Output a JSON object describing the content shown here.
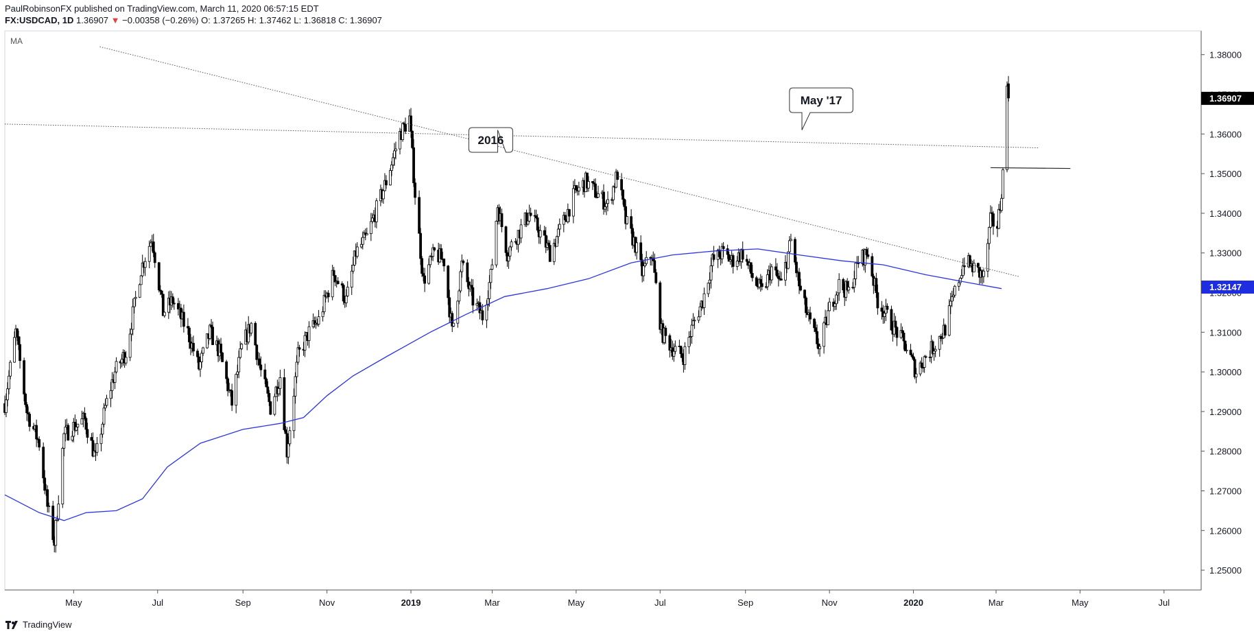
{
  "header": {
    "publisher_line": "PaulRobinsonFX published on TradingView.com, March 11, 2020 06:57:15 EDT",
    "symbol": "FX:USDCAD, 1D",
    "last": "1.36907",
    "change_arrow": "▼",
    "change": "−0.00358 (−0.26%)",
    "ohlc": "O: 1.37265 H: 1.37462 L: 1.36818 C: 1.36907"
  },
  "indicator_label": "MA",
  "footer": {
    "brand": "TradingView",
    "icon": "tradingview-logo-icon"
  },
  "chart_data": {
    "type": "candlestick",
    "symbol": "FX:USDCAD",
    "interval": "1D",
    "ylim": [
      1.245,
      1.386
    ],
    "yticks": [
      "1.38000",
      "1.37000",
      "1.36000",
      "1.35000",
      "1.34000",
      "1.33000",
      "1.32000",
      "1.31000",
      "1.30000",
      "1.29000",
      "1.28000",
      "1.27000",
      "1.26000",
      "1.25000"
    ],
    "xlim": [
      "2018-03-12",
      "2020-07-28"
    ],
    "xticks": [
      {
        "date": "2018-05-01",
        "label": "May",
        "bold": false
      },
      {
        "date": "2018-07-01",
        "label": "Jul",
        "bold": false
      },
      {
        "date": "2018-09-01",
        "label": "Sep",
        "bold": false
      },
      {
        "date": "2018-11-01",
        "label": "Nov",
        "bold": false
      },
      {
        "date": "2019-01-01",
        "label": "2019",
        "bold": true
      },
      {
        "date": "2019-03-01",
        "label": "Mar",
        "bold": false
      },
      {
        "date": "2019-05-01",
        "label": "May",
        "bold": false
      },
      {
        "date": "2019-07-01",
        "label": "Jul",
        "bold": false
      },
      {
        "date": "2019-09-01",
        "label": "Sep",
        "bold": false
      },
      {
        "date": "2019-11-01",
        "label": "Nov",
        "bold": false
      },
      {
        "date": "2020-01-01",
        "label": "2020",
        "bold": true
      },
      {
        "date": "2020-03-01",
        "label": "Mar",
        "bold": false
      },
      {
        "date": "2020-05-01",
        "label": "May",
        "bold": false
      },
      {
        "date": "2020-07-01",
        "label": "Jul",
        "bold": false
      }
    ],
    "close_path": [
      [
        "2018-03-12",
        1.292
      ],
      [
        "2018-03-20",
        1.31
      ],
      [
        "2018-03-28",
        1.29
      ],
      [
        "2018-04-06",
        1.282
      ],
      [
        "2018-04-12",
        1.266
      ],
      [
        "2018-04-17",
        1.257
      ],
      [
        "2018-04-24",
        1.284
      ],
      [
        "2018-04-30",
        1.286
      ],
      [
        "2018-05-09",
        1.288
      ],
      [
        "2018-05-17",
        1.278
      ],
      [
        "2018-05-24",
        1.291
      ],
      [
        "2018-05-31",
        1.3
      ],
      [
        "2018-06-08",
        1.305
      ],
      [
        "2018-06-19",
        1.326
      ],
      [
        "2018-06-27",
        1.334
      ],
      [
        "2018-07-05",
        1.315
      ],
      [
        "2018-07-12",
        1.318
      ],
      [
        "2018-07-23",
        1.31
      ],
      [
        "2018-07-31",
        1.301
      ],
      [
        "2018-08-08",
        1.31
      ],
      [
        "2018-08-15",
        1.305
      ],
      [
        "2018-08-24",
        1.292
      ],
      [
        "2018-08-31",
        1.306
      ],
      [
        "2018-09-07",
        1.312
      ],
      [
        "2018-09-14",
        1.3
      ],
      [
        "2018-09-21",
        1.291
      ],
      [
        "2018-09-28",
        1.299
      ],
      [
        "2018-10-03",
        1.28
      ],
      [
        "2018-10-11",
        1.304
      ],
      [
        "2018-10-19",
        1.31
      ],
      [
        "2018-10-26",
        1.313
      ],
      [
        "2018-11-06",
        1.325
      ],
      [
        "2018-11-15",
        1.318
      ],
      [
        "2018-11-22",
        1.33
      ],
      [
        "2018-11-30",
        1.334
      ],
      [
        "2018-12-06",
        1.34
      ],
      [
        "2018-12-14",
        1.348
      ],
      [
        "2018-12-24",
        1.36
      ],
      [
        "2018-12-31",
        1.364
      ],
      [
        "2019-01-04",
        1.345
      ],
      [
        "2019-01-10",
        1.323
      ],
      [
        "2019-01-18",
        1.33
      ],
      [
        "2019-01-25",
        1.328
      ],
      [
        "2019-01-31",
        1.31
      ],
      [
        "2019-02-07",
        1.327
      ],
      [
        "2019-02-15",
        1.318
      ],
      [
        "2019-02-22",
        1.314
      ],
      [
        "2019-02-28",
        1.324
      ],
      [
        "2019-03-05",
        1.342
      ],
      [
        "2019-03-12",
        1.33
      ],
      [
        "2019-03-20",
        1.335
      ],
      [
        "2019-03-28",
        1.34
      ],
      [
        "2019-04-05",
        1.335
      ],
      [
        "2019-04-12",
        1.33
      ],
      [
        "2019-04-22",
        1.338
      ],
      [
        "2019-04-30",
        1.345
      ],
      [
        "2019-05-08",
        1.348
      ],
      [
        "2019-05-16",
        1.345
      ],
      [
        "2019-05-24",
        1.342
      ],
      [
        "2019-05-31",
        1.35
      ],
      [
        "2019-06-06",
        1.338
      ],
      [
        "2019-06-13",
        1.332
      ],
      [
        "2019-06-18",
        1.325
      ],
      [
        "2019-06-25",
        1.33
      ],
      [
        "2019-07-02",
        1.31
      ],
      [
        "2019-07-10",
        1.306
      ],
      [
        "2019-07-18",
        1.304
      ],
      [
        "2019-07-25",
        1.312
      ],
      [
        "2019-08-01",
        1.318
      ],
      [
        "2019-08-08",
        1.328
      ],
      [
        "2019-08-15",
        1.33
      ],
      [
        "2019-08-22",
        1.328
      ],
      [
        "2019-08-30",
        1.33
      ],
      [
        "2019-09-06",
        1.324
      ],
      [
        "2019-09-13",
        1.32
      ],
      [
        "2019-09-20",
        1.326
      ],
      [
        "2019-09-27",
        1.322
      ],
      [
        "2019-10-04",
        1.333
      ],
      [
        "2019-10-11",
        1.32
      ],
      [
        "2019-10-18",
        1.312
      ],
      [
        "2019-10-25",
        1.306
      ],
      [
        "2019-11-01",
        1.316
      ],
      [
        "2019-11-08",
        1.322
      ],
      [
        "2019-11-15",
        1.32
      ],
      [
        "2019-11-22",
        1.328
      ],
      [
        "2019-11-29",
        1.33
      ],
      [
        "2019-12-06",
        1.318
      ],
      [
        "2019-12-13",
        1.314
      ],
      [
        "2019-12-20",
        1.31
      ],
      [
        "2019-12-27",
        1.306
      ],
      [
        "2020-01-03",
        1.3
      ],
      [
        "2020-01-10",
        1.304
      ],
      [
        "2020-01-17",
        1.307
      ],
      [
        "2020-01-24",
        1.311
      ],
      [
        "2020-01-31",
        1.32
      ],
      [
        "2020-02-07",
        1.328
      ],
      [
        "2020-02-14",
        1.326
      ],
      [
        "2020-02-21",
        1.324
      ],
      [
        "2020-02-26",
        1.338
      ],
      [
        "2020-03-02",
        1.337
      ],
      [
        "2020-03-04",
        1.342
      ],
      [
        "2020-03-06",
        1.35
      ],
      [
        "2020-03-09",
        1.372
      ],
      [
        "2020-03-10",
        1.369
      ]
    ],
    "moving_average": [
      [
        "2018-03-12",
        1.269
      ],
      [
        "2018-04-06",
        1.2645
      ],
      [
        "2018-04-24",
        1.2625
      ],
      [
        "2018-05-10",
        1.2645
      ],
      [
        "2018-06-01",
        1.265
      ],
      [
        "2018-06-20",
        1.268
      ],
      [
        "2018-07-08",
        1.276
      ],
      [
        "2018-08-01",
        1.282
      ],
      [
        "2018-09-01",
        1.2855
      ],
      [
        "2018-09-28",
        1.287
      ],
      [
        "2018-10-15",
        1.2885
      ],
      [
        "2018-11-01",
        1.294
      ],
      [
        "2018-11-20",
        1.299
      ],
      [
        "2018-12-15",
        1.304
      ],
      [
        "2019-01-15",
        1.31
      ],
      [
        "2019-02-10",
        1.3145
      ],
      [
        "2019-03-10",
        1.319
      ],
      [
        "2019-04-10",
        1.321
      ],
      [
        "2019-05-10",
        1.3235
      ],
      [
        "2019-06-10",
        1.3275
      ],
      [
        "2019-07-10",
        1.3295
      ],
      [
        "2019-08-10",
        1.3305
      ],
      [
        "2019-09-10",
        1.331
      ],
      [
        "2019-10-10",
        1.3295
      ],
      [
        "2019-11-10",
        1.328
      ],
      [
        "2019-12-10",
        1.327
      ],
      [
        "2020-01-10",
        1.3245
      ],
      [
        "2020-02-10",
        1.3225
      ],
      [
        "2020-03-05",
        1.321
      ]
    ],
    "ma_label": "1.32147",
    "last_price_label": "1.36907",
    "trendlines": [
      {
        "from": [
          "2018-03-12",
          1.3625
        ],
        "to": [
          "2020-04-01",
          1.3565
        ],
        "style": "dotted"
      },
      {
        "from": [
          "2018-05-20",
          1.382
        ],
        "to": [
          "2020-03-18",
          1.324
        ],
        "style": "dotted"
      },
      {
        "from": [
          "2020-02-26",
          1.3515
        ],
        "to": [
          "2020-04-24",
          1.3513
        ],
        "style": "solid"
      }
    ],
    "annotations": [
      {
        "text": "2016",
        "at": [
          "2019-02-28",
          1.3585
        ],
        "tail": [
          "2019-03-05",
          1.361
        ]
      },
      {
        "text": "May '17",
        "at": [
          "2019-10-26",
          1.3685
        ],
        "tail": [
          "2019-10-12",
          1.361
        ]
      }
    ]
  }
}
